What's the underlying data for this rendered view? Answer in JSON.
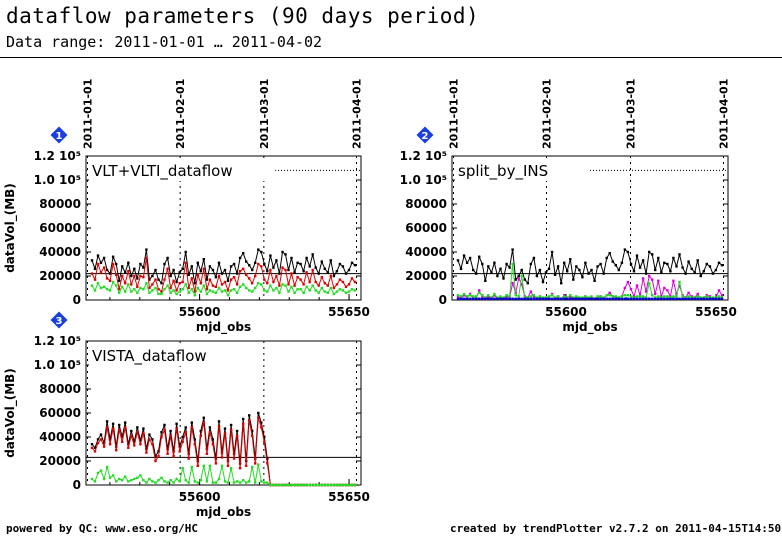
{
  "page": {
    "title": "dataflow parameters (90 days period)",
    "subtitle": "Data range: 2011-01-01 … 2011-04-02",
    "footer_left": "powered by QC: www.eso.org/HC",
    "footer_right": "created by trendPlotter v2.7.2 on 2011-04-15T14:50:57"
  },
  "colors": {
    "black": "#000000",
    "red": "#e00000",
    "green": "#22dd22",
    "magenta": "#dd00dd",
    "blue": "#0000cc",
    "badge": "#1a3fe0"
  },
  "chart_data": [
    {
      "type": "line",
      "badge": "1",
      "label": "VLT+VLTI_dataflow",
      "xlabel": "mjd_obs",
      "ylabel": "dataVol_(MB)",
      "xlim": [
        55562,
        55654
      ],
      "ylim": [
        0,
        120000
      ],
      "xticks": [
        "55600",
        "55650"
      ],
      "yticks": [
        "0",
        "20000",
        "40000",
        "60000",
        "80000",
        "1.0 10⁵",
        "1.2 10⁵"
      ],
      "date_labels": [
        "2011-01-01",
        "2011-02-01",
        "2011-03-01",
        "2011-04-01"
      ],
      "ref_lines": [
        22000,
        108000
      ],
      "series": [
        {
          "color": "black",
          "values": [
            33000,
            26000,
            37000,
            31000,
            35000,
            25000,
            22000,
            36000,
            30000,
            16000,
            28000,
            23000,
            31000,
            20000,
            26000,
            18000,
            30000,
            27000,
            42000,
            17000,
            20000,
            25000,
            17000,
            14000,
            30000,
            35000,
            20000,
            25000,
            15000,
            23000,
            26000,
            40000,
            21000,
            28000,
            14000,
            31000,
            24000,
            34000,
            17000,
            28000,
            25000,
            19000,
            31000,
            22000,
            25000,
            16000,
            28000,
            30000,
            22000,
            35000,
            39000,
            32000,
            29000,
            25000,
            31000,
            42000,
            40000,
            30000,
            24000,
            37000,
            27000,
            33000,
            22000,
            40000,
            38000,
            25000,
            35000,
            23000,
            31000,
            30000,
            24000,
            35000,
            28000,
            38000,
            27000,
            22000,
            32000,
            26000,
            23000,
            33000,
            20000,
            24000,
            30000,
            28000,
            22000,
            25000,
            31000,
            29000
          ]
        },
        {
          "color": "red",
          "values": [
            22000,
            17000,
            30000,
            23000,
            27000,
            18000,
            16000,
            30000,
            21000,
            9000,
            20000,
            14000,
            24000,
            13000,
            20000,
            11000,
            20000,
            19000,
            35000,
            10000,
            13000,
            17000,
            9000,
            7000,
            17000,
            26000,
            10000,
            16000,
            8000,
            14000,
            15000,
            31000,
            10000,
            18000,
            7000,
            21000,
            14000,
            26000,
            9000,
            17000,
            12000,
            11000,
            20000,
            13000,
            15000,
            8000,
            17000,
            19000,
            13000,
            24000,
            26000,
            21000,
            18000,
            14000,
            20000,
            30000,
            28000,
            17000,
            14000,
            25000,
            15000,
            20000,
            12000,
            27000,
            25000,
            13000,
            22000,
            12000,
            19000,
            17000,
            13000,
            23000,
            15000,
            25000,
            15000,
            12000,
            19000,
            14000,
            12000,
            20000,
            10000,
            13000,
            17000,
            15000,
            11000,
            13000,
            18000,
            15000
          ]
        },
        {
          "color": "green",
          "values": [
            12000,
            8000,
            14000,
            10000,
            11000,
            9000,
            8000,
            15000,
            12000,
            6000,
            11000,
            7000,
            13000,
            7000,
            9000,
            6000,
            10000,
            9000,
            14000,
            6000,
            8000,
            10000,
            5000,
            5000,
            9000,
            12000,
            6000,
            8000,
            5000,
            7000,
            9000,
            13000,
            6000,
            9000,
            4000,
            10000,
            7000,
            12000,
            5000,
            8000,
            7000,
            6000,
            10000,
            7000,
            8000,
            4000,
            8000,
            9000,
            6000,
            11000,
            13000,
            10000,
            8000,
            7000,
            10000,
            14000,
            13000,
            8000,
            7000,
            12000,
            8000,
            10000,
            6000,
            13000,
            12000,
            7000,
            11000,
            6000,
            9000,
            9000,
            6000,
            11000,
            8000,
            12000,
            8000,
            6000,
            10000,
            7000,
            6000,
            10000,
            5000,
            7000,
            9000,
            8000,
            6000,
            7000,
            9000,
            8000
          ]
        }
      ]
    },
    {
      "type": "line",
      "badge": "2",
      "label": "split_by_INS",
      "xlabel": "mjd_obs",
      "ylabel": "",
      "xlim": [
        55562,
        55654
      ],
      "ylim": [
        0,
        120000
      ],
      "xticks": [
        "55600",
        "55650"
      ],
      "yticks": [
        "0",
        "20000",
        "40000",
        "60000",
        "80000",
        "1.0 10⁵",
        "1.2 10⁵"
      ],
      "date_labels": [
        "2011-01-01",
        "2011-02-01",
        "2011-03-01",
        "2011-04-01"
      ],
      "ref_lines": [
        22000,
        108000
      ],
      "series": [
        {
          "color": "black",
          "values": [
            33000,
            26000,
            37000,
            31000,
            35000,
            25000,
            22000,
            36000,
            30000,
            16000,
            28000,
            23000,
            31000,
            20000,
            26000,
            18000,
            30000,
            27000,
            42000,
            17000,
            20000,
            25000,
            17000,
            14000,
            30000,
            35000,
            20000,
            25000,
            15000,
            23000,
            26000,
            40000,
            21000,
            28000,
            14000,
            31000,
            24000,
            34000,
            17000,
            28000,
            25000,
            19000,
            31000,
            22000,
            25000,
            16000,
            28000,
            30000,
            22000,
            35000,
            39000,
            32000,
            29000,
            25000,
            31000,
            42000,
            40000,
            30000,
            24000,
            37000,
            27000,
            33000,
            22000,
            40000,
            38000,
            25000,
            35000,
            23000,
            31000,
            30000,
            24000,
            35000,
            28000,
            38000,
            27000,
            22000,
            32000,
            26000,
            23000,
            33000,
            20000,
            24000,
            30000,
            28000,
            22000,
            25000,
            31000,
            29000
          ]
        },
        {
          "color": "magenta",
          "values": [
            3000,
            1000,
            4000,
            2000,
            5000,
            1000,
            1000,
            8000,
            2000,
            1000,
            3000,
            1000,
            4000,
            1000,
            2000,
            1000,
            3000,
            2000,
            14000,
            6000,
            18000,
            13000,
            3000,
            2000,
            7000,
            2000,
            1000,
            3000,
            1000,
            2000,
            2000,
            5000,
            1000,
            3000,
            1000,
            4000,
            2000,
            3000,
            1000,
            2000,
            2000,
            1000,
            3000,
            1000,
            2000,
            1000,
            2000,
            3000,
            1000,
            4000,
            6000,
            3000,
            2000,
            2000,
            3000,
            10000,
            15000,
            9000,
            3000,
            12000,
            4000,
            18000,
            7000,
            20000,
            17000,
            5000,
            16000,
            3000,
            10000,
            8000,
            3000,
            16000,
            5000,
            12000,
            4000,
            2000,
            6000,
            3000,
            2000,
            5000,
            1000,
            2000,
            4000,
            3000,
            1000,
            2000,
            8000,
            4000
          ]
        },
        {
          "color": "green",
          "values": [
            4000,
            3000,
            5000,
            3000,
            4000,
            3000,
            3000,
            6000,
            4000,
            2000,
            4000,
            2000,
            5000,
            2000,
            3000,
            2000,
            4000,
            3000,
            30000,
            4000,
            3000,
            20000,
            2000,
            2000,
            3000,
            4000,
            2000,
            3000,
            2000,
            2000,
            3000,
            4000,
            2000,
            3000,
            1000,
            3000,
            2000,
            4000,
            2000,
            3000,
            2000,
            2000,
            3000,
            2000,
            3000,
            1000,
            3000,
            3000,
            2000,
            4000,
            4000,
            3000,
            3000,
            2000,
            3000,
            4000,
            4000,
            3000,
            2000,
            3000,
            3000,
            3000,
            2000,
            14000,
            4000,
            2000,
            3000,
            2000,
            3000,
            3000,
            2000,
            3000,
            3000,
            15000,
            3000,
            2000,
            3000,
            2000,
            2000,
            3000,
            2000,
            2000,
            3000,
            2000,
            2000,
            2000,
            3000,
            2000
          ]
        },
        {
          "color": "blue",
          "values": [
            1000,
            1000,
            1000,
            1000,
            1000,
            1000,
            1000,
            1000,
            1000,
            1000,
            1000,
            1000,
            1000,
            1000,
            1000,
            1000,
            1000,
            1000,
            1000,
            1000,
            1000,
            1000,
            1000,
            1000,
            1000,
            1000,
            1000,
            1000,
            1000,
            1000,
            1000,
            1000,
            1000,
            1000,
            1000,
            1000,
            1000,
            1000,
            1000,
            1000,
            1000,
            1000,
            1000,
            1000,
            1000,
            1000,
            1000,
            1000,
            1000,
            1000,
            1000,
            1000,
            1000,
            1000,
            1000,
            1000,
            1000,
            1000,
            1000,
            1000,
            1000,
            1000,
            1000,
            1000,
            1000,
            1000,
            1000,
            1000,
            1000,
            1000,
            1000,
            1000,
            1000,
            1000,
            1000,
            1000,
            1000,
            1000,
            1000,
            1000,
            1000,
            1000,
            1000,
            1000,
            1000,
            1000,
            1000,
            1000
          ]
        }
      ]
    },
    {
      "type": "line",
      "badge": "3",
      "label": "VISTA_dataflow",
      "xlabel": "mjd_obs",
      "ylabel": "dataVol_(MB)",
      "xlim": [
        55562,
        55654
      ],
      "ylim": [
        0,
        120000
      ],
      "xticks": [
        "55600",
        "55650"
      ],
      "yticks": [
        "0",
        "20000",
        "40000",
        "60000",
        "80000",
        "1.0 10⁵",
        "1.2 10⁵"
      ],
      "date_labels": [],
      "ref_lines": [
        23000
      ],
      "series": [
        {
          "color": "black",
          "values": [
            34000,
            31000,
            38000,
            42000,
            35000,
            53000,
            38000,
            51000,
            32000,
            50000,
            40000,
            52000,
            34000,
            45000,
            36000,
            48000,
            37000,
            47000,
            30000,
            42000,
            38000,
            24000,
            28000,
            44000,
            50000,
            30000,
            45000,
            28000,
            51000,
            32000,
            40000,
            48000,
            26000,
            52000,
            38000,
            20000,
            45000,
            56000,
            30000,
            48000,
            38000,
            22000,
            53000,
            27000,
            47000,
            20000,
            50000,
            26000,
            45000,
            18000,
            55000,
            20000,
            58000,
            45000,
            22000,
            60000,
            52000,
            40000,
            22000,
            0,
            0,
            0,
            0,
            0,
            0,
            0,
            0,
            0,
            0,
            0,
            0,
            0,
            0,
            0,
            0,
            0,
            0,
            0,
            0,
            0,
            0,
            0,
            0,
            0,
            0,
            0,
            0,
            0
          ]
        },
        {
          "color": "red",
          "values": [
            31000,
            28000,
            35000,
            38000,
            32000,
            48000,
            34000,
            47000,
            29000,
            46000,
            36000,
            48000,
            31000,
            41000,
            33000,
            44000,
            34000,
            43000,
            27000,
            38000,
            34000,
            20000,
            24000,
            40000,
            46000,
            26000,
            41000,
            24000,
            47000,
            28000,
            36000,
            44000,
            22000,
            48000,
            34000,
            16000,
            41000,
            52000,
            26000,
            44000,
            34000,
            18000,
            49000,
            23000,
            43000,
            16000,
            46000,
            22000,
            41000,
            14000,
            51000,
            16000,
            54000,
            41000,
            18000,
            56000,
            48000,
            36000,
            18000,
            0,
            0,
            0,
            0,
            0,
            0,
            0,
            0,
            0,
            0,
            0,
            0,
            0,
            0,
            0,
            0,
            0,
            0,
            0,
            0,
            0,
            0,
            0,
            0,
            0,
            0,
            0,
            0,
            0
          ]
        },
        {
          "color": "green",
          "values": [
            5000,
            3000,
            10000,
            12000,
            5000,
            15000,
            6000,
            8000,
            3000,
            5000,
            4000,
            7000,
            3000,
            4000,
            5000,
            6000,
            8000,
            4000,
            2000,
            5000,
            3000,
            2000,
            4000,
            6000,
            3000,
            2000,
            4000,
            2000,
            5000,
            3000,
            14000,
            4000,
            2000,
            15000,
            3000,
            2000,
            4000,
            16000,
            3000,
            16000,
            2000,
            2000,
            5000,
            16000,
            3000,
            2000,
            14000,
            2000,
            3000,
            2000,
            4000,
            2000,
            3000,
            15000,
            2000,
            17000,
            3000,
            2000,
            2000,
            0,
            0,
            0,
            0,
            0,
            0,
            0,
            0,
            0,
            0,
            0,
            0,
            0,
            0,
            0,
            0,
            0,
            0,
            0,
            0,
            0,
            0,
            0,
            0,
            0,
            0,
            0,
            0,
            0
          ]
        }
      ]
    }
  ]
}
